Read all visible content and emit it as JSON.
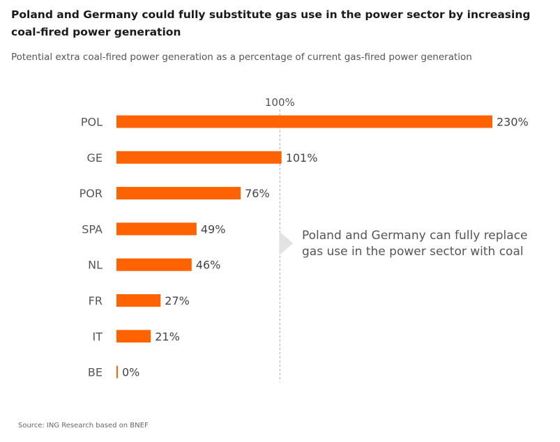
{
  "title": "Poland and Germany could fully substitute gas use in the power sector by increasing coal-fired power generation",
  "subtitle": "Potential extra coal-fired power generation as a percentage of current gas-fired power generation",
  "source": "Source: ING Research based on BNEF",
  "colors": {
    "bar": "#ff6200",
    "reference_line": "#b5b5b5",
    "arrow": "#e3e3e3"
  },
  "chart_data": {
    "type": "bar",
    "orientation": "horizontal",
    "categories": [
      "POL",
      "GE",
      "POR",
      "SPA",
      "NL",
      "FR",
      "IT",
      "BE"
    ],
    "values": [
      230,
      101,
      76,
      49,
      46,
      27,
      21,
      0
    ],
    "value_labels": [
      "230%",
      "101%",
      "76%",
      "49%",
      "46%",
      "27%",
      "21%",
      "0%"
    ],
    "xlim": [
      0,
      230
    ],
    "reference_line": {
      "value": 100,
      "label": "100%",
      "style": "dashed"
    },
    "annotation": {
      "lines": [
        "Poland and Germany can fully replace",
        "gas use in the power sector with coal"
      ]
    },
    "grid": false,
    "legend": "none"
  }
}
